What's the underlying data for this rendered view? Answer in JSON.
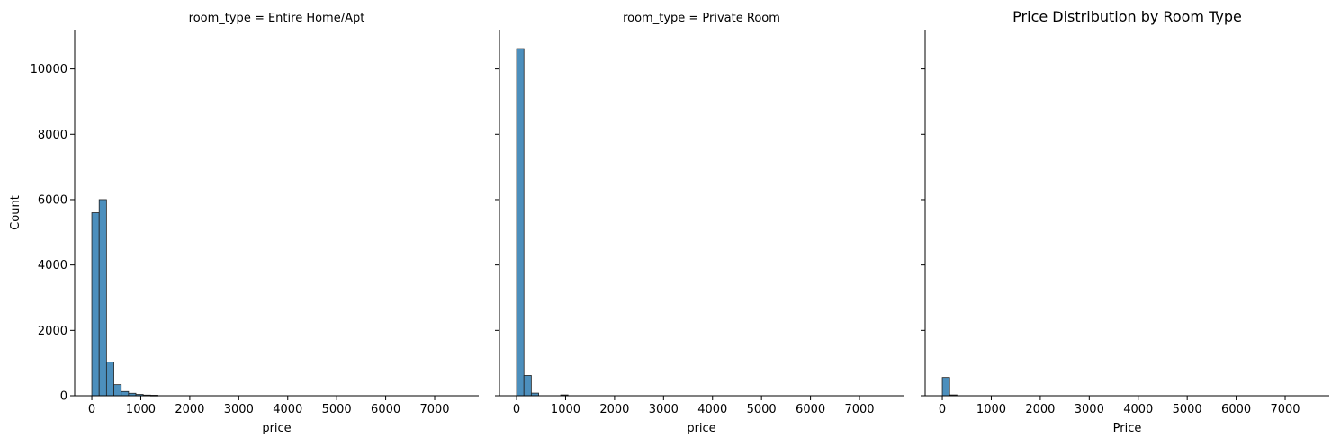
{
  "figure": {
    "title": "Price Distribution by Room Type",
    "ylabel": "Count"
  },
  "colors": {
    "bar_fill": "#4c8fbd",
    "bar_edge": "#222222",
    "axis": "#000000"
  },
  "chart_data": [
    {
      "type": "bar",
      "title": "room_type = Entire Home/Apt",
      "xlabel": "price",
      "ylabel": "Count",
      "xlim": [
        -350,
        7900
      ],
      "ylim": [
        0,
        11200
      ],
      "xticks": [
        0,
        1000,
        2000,
        3000,
        4000,
        5000,
        6000,
        7000
      ],
      "xtick_labels": [
        "0",
        "1000",
        "2000",
        "3000",
        "4000",
        "5000",
        "6000",
        "7000"
      ],
      "yticks": [
        0,
        2000,
        4000,
        6000,
        8000,
        10000
      ],
      "ytick_labels": [
        "0",
        "2000",
        "4000",
        "6000",
        "8000",
        "10000"
      ],
      "bin_width": 150,
      "bin_starts": [
        0,
        150,
        300,
        450,
        600,
        750,
        900,
        1050,
        1200
      ],
      "values": [
        5600,
        6000,
        1030,
        340,
        130,
        75,
        40,
        20,
        15
      ]
    },
    {
      "type": "bar",
      "title": "room_type = Private Room",
      "xlabel": "price",
      "ylabel": "",
      "xlim": [
        -350,
        7900
      ],
      "ylim": [
        0,
        11200
      ],
      "xticks": [
        0,
        1000,
        2000,
        3000,
        4000,
        5000,
        6000,
        7000
      ],
      "xtick_labels": [
        "0",
        "1000",
        "2000",
        "3000",
        "4000",
        "5000",
        "6000",
        "7000"
      ],
      "yticks": [
        0,
        2000,
        4000,
        6000,
        8000,
        10000
      ],
      "ytick_labels": [],
      "bin_width": 150,
      "bin_starts": [
        0,
        150,
        300,
        900
      ],
      "values": [
        10620,
        620,
        80,
        25
      ]
    },
    {
      "type": "bar",
      "title": "",
      "xlabel": "Price",
      "ylabel": "",
      "xlim": [
        -350,
        7900
      ],
      "ylim": [
        0,
        11200
      ],
      "xticks": [
        0,
        1000,
        2000,
        3000,
        4000,
        5000,
        6000,
        7000
      ],
      "xtick_labels": [
        "0",
        "1000",
        "2000",
        "3000",
        "4000",
        "5000",
        "6000",
        "7000"
      ],
      "yticks": [
        0,
        2000,
        4000,
        6000,
        8000,
        10000
      ],
      "ytick_labels": [],
      "bin_width": 150,
      "bin_starts": [
        0,
        150
      ],
      "values": [
        560,
        25
      ]
    }
  ]
}
